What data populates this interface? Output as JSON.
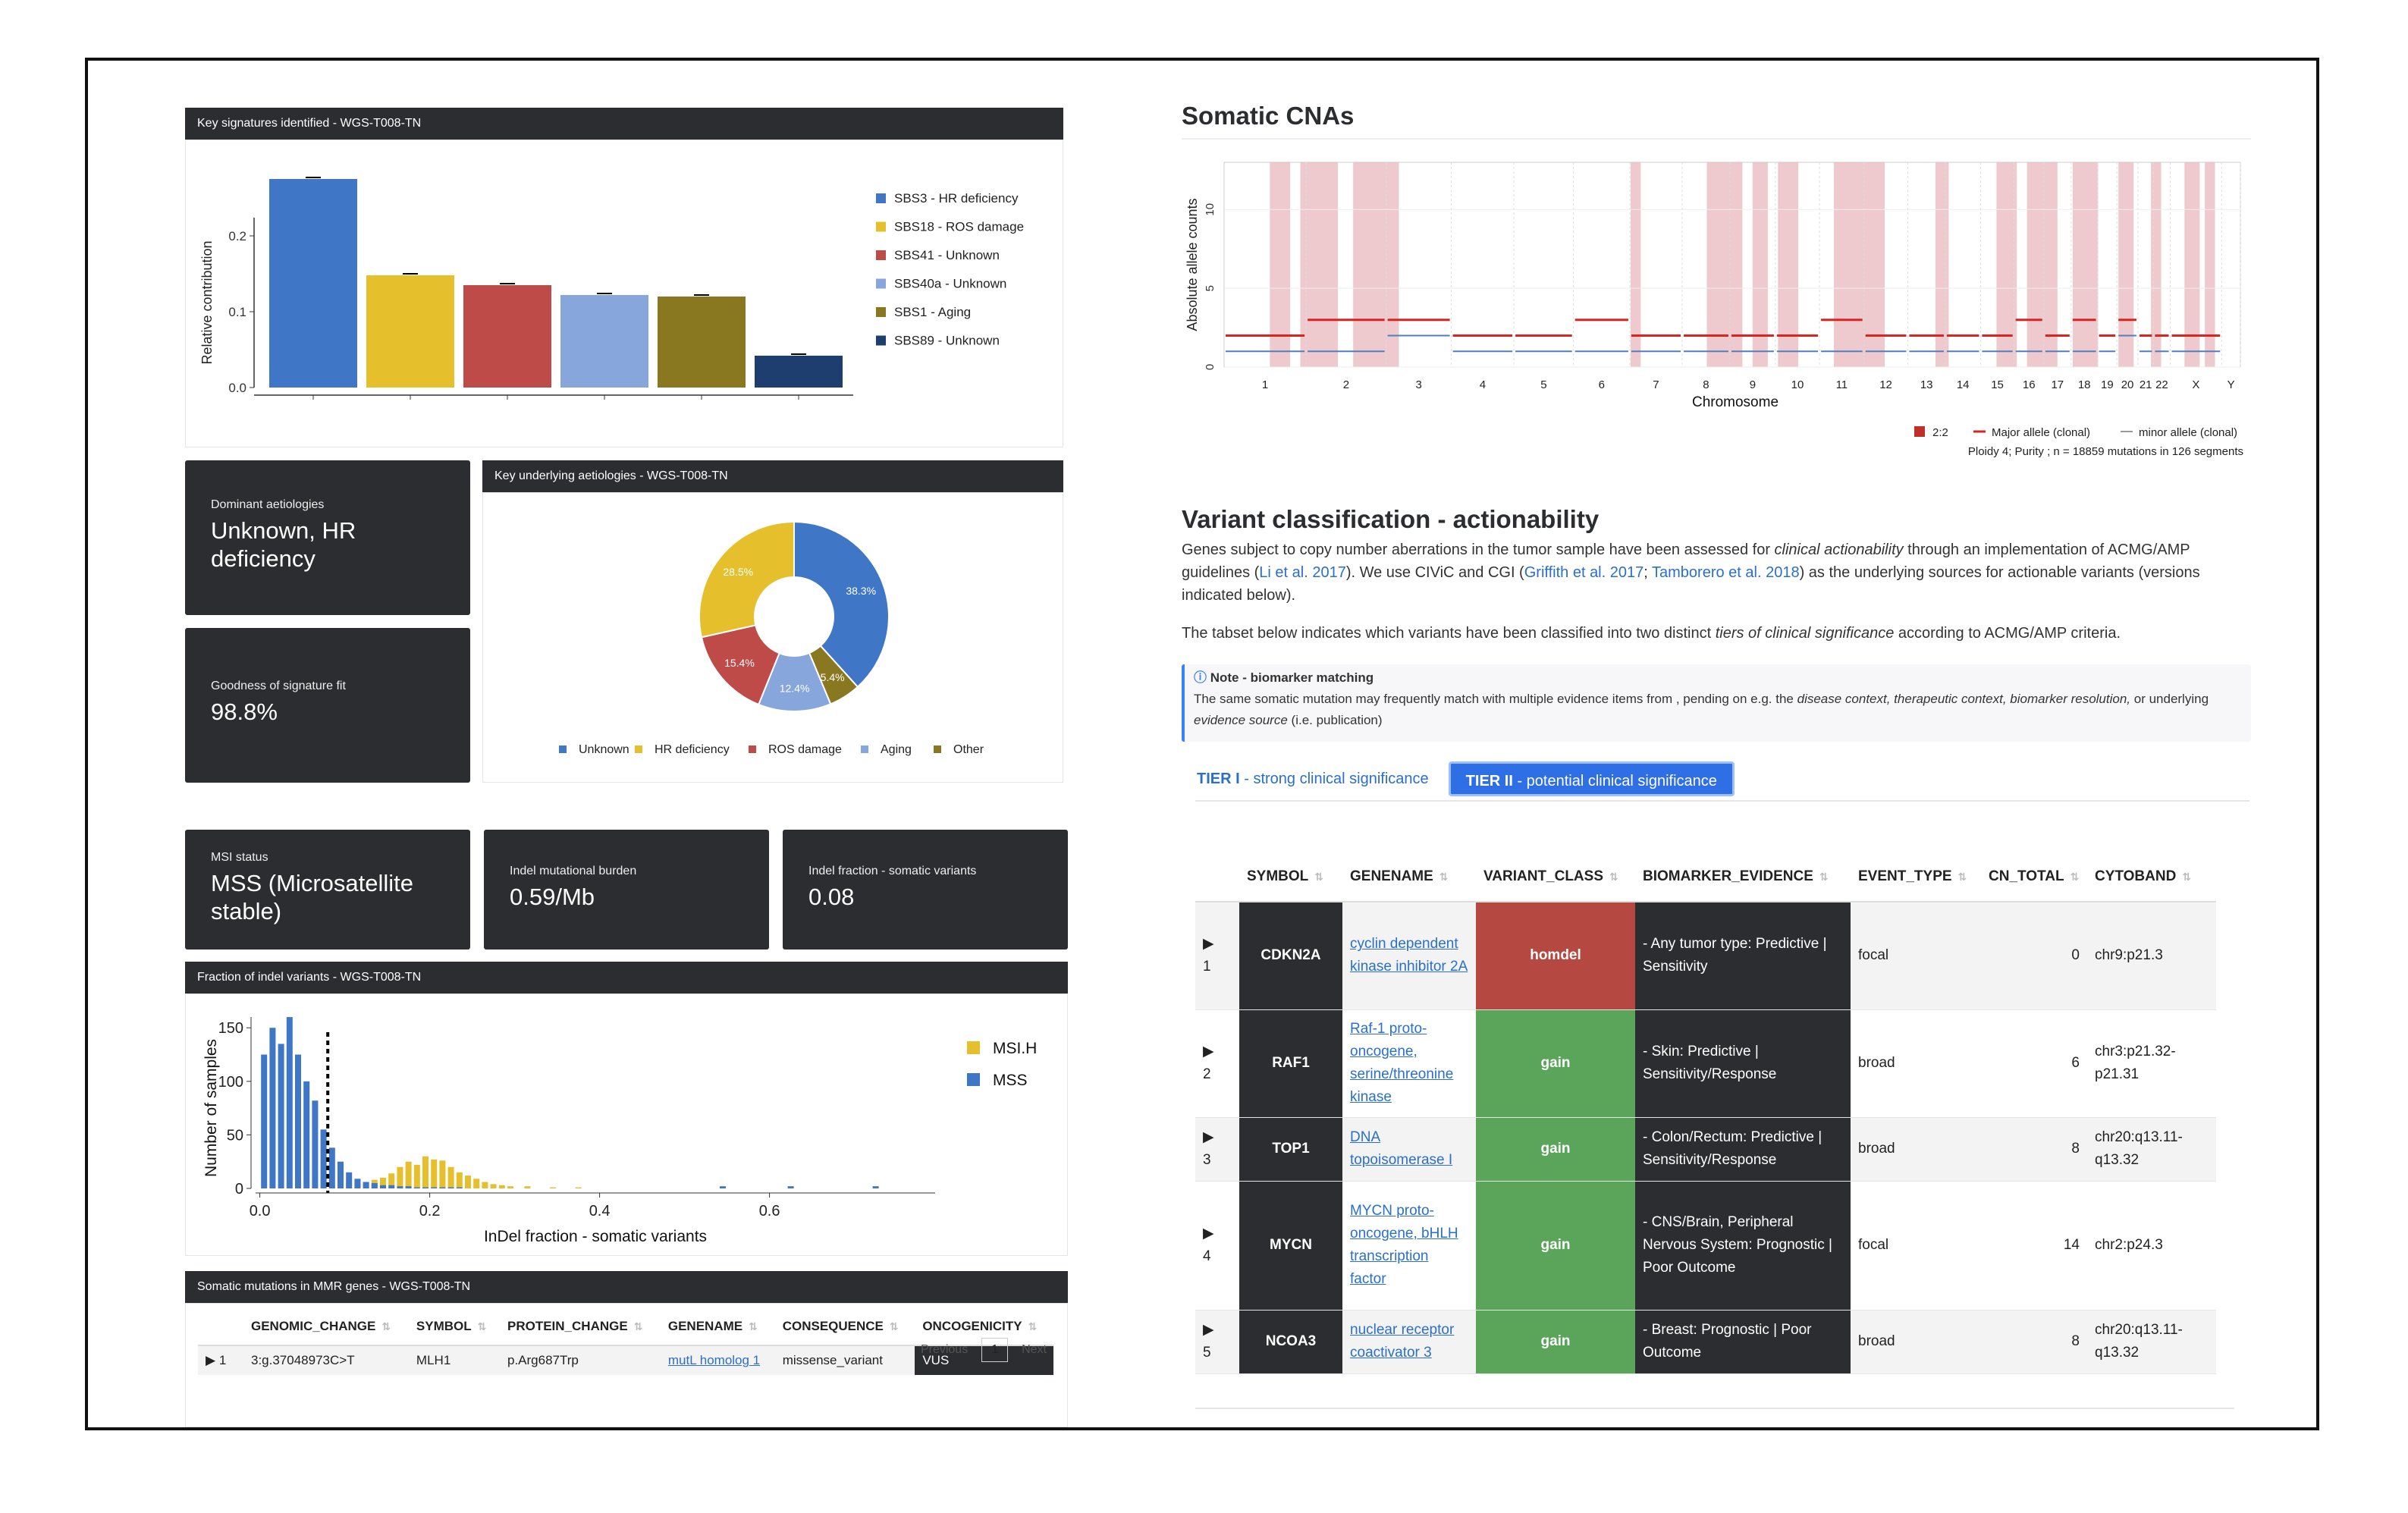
{
  "signatures": {
    "title": "Key signatures identified - WGS-T008-TN",
    "ylabel": "Relative contribution",
    "legend": [
      "SBS3 - HR deficiency",
      "SBS18 - ROS damage",
      "SBS41 - Unknown",
      "SBS40a - Unknown",
      "SBS1 - Aging",
      "SBS89 - Unknown"
    ],
    "colors": [
      "#3f76c6",
      "#e5c02c",
      "#bf4b48",
      "#87a6db",
      "#8a7820",
      "#1d3e6e"
    ],
    "values": [
      0.275,
      0.148,
      0.135,
      0.122,
      0.12,
      0.042
    ],
    "yticks": [
      "0.0",
      "0.1",
      "0.2"
    ]
  },
  "dominant": {
    "label": "Dominant aetiologies",
    "value": "Unknown, HR deficiency"
  },
  "goodness": {
    "label": "Goodness of signature fit",
    "value": "98.8%"
  },
  "aetiologies": {
    "title": "Key underlying aetiologies - WGS-T008-TN",
    "slices": [
      {
        "name": "Unknown",
        "value": 38.3,
        "label": "38.3%",
        "color": "#3f76c6"
      },
      {
        "name": "Other",
        "value": 5.4,
        "label": "5.4%",
        "color": "#8a7820"
      },
      {
        "name": "Aging",
        "value": 12.4,
        "label": "12.4%",
        "color": "#87a6db"
      },
      {
        "name": "ROS damage",
        "value": 15.4,
        "label": "15.4%",
        "color": "#bf4b48"
      },
      {
        "name": "HR deficiency",
        "value": 28.5,
        "label": "28.5%",
        "color": "#e5c02c"
      }
    ],
    "legend": [
      {
        "name": "Unknown",
        "color": "#3f76c6"
      },
      {
        "name": "HR deficiency",
        "color": "#e5c02c"
      },
      {
        "name": "ROS damage",
        "color": "#bf4b48"
      },
      {
        "name": "Aging",
        "color": "#87a6db"
      },
      {
        "name": "Other",
        "color": "#8a7820"
      }
    ]
  },
  "msi": {
    "label": "MSI status",
    "value": "MSS (Microsatellite stable)"
  },
  "tmb": {
    "label": "Indel mutational burden",
    "value": "0.59/Mb"
  },
  "indel_frac": {
    "label": "Indel fraction - somatic variants",
    "value": "0.08"
  },
  "indel_hist": {
    "title": "Fraction of indel variants - WGS-T008-TN",
    "xlabel": "InDel fraction - somatic variants",
    "ylabel": "Number of samples",
    "legend": [
      {
        "name": "MSI.H",
        "color": "#e5c02c"
      },
      {
        "name": "MSS",
        "color": "#3f76c6"
      }
    ],
    "xticks": [
      "0.0",
      "0.2",
      "0.4",
      "0.6"
    ],
    "yticks": [
      "0",
      "50",
      "100",
      "150"
    ],
    "sample_value": 0.085
  },
  "mmr": {
    "title": "Somatic mutations in MMR genes - WGS-T008-TN",
    "columns": [
      "GENOMIC_CHANGE",
      "SYMBOL",
      "PROTEIN_CHANGE",
      "GENENAME",
      "CONSEQUENCE",
      "ONCOGENICITY"
    ],
    "row": {
      "idx": "1",
      "genomic": "3:g.37048973C>T",
      "symbol": "MLH1",
      "protein": "p.Arg687Trp",
      "genename": "mutL homolog 1",
      "consequence": "missense_variant",
      "oncogenicity": "VUS"
    },
    "pager": {
      "prev": "Previous",
      "page": "1",
      "next": "Next"
    }
  },
  "cna": {
    "title": "Somatic CNAs",
    "ylabel": "Absolute allele counts",
    "xlabel": "Chromosome",
    "yticks": [
      "0",
      "5",
      "10"
    ],
    "chromosomes": [
      "1",
      "2",
      "3",
      "4",
      "5",
      "6",
      "7",
      "8",
      "9",
      "10",
      "11",
      "12",
      "13",
      "14",
      "15",
      "16",
      "17",
      "18",
      "19",
      "20",
      "21",
      "22",
      "X",
      "Y"
    ],
    "legend": {
      "box": "2:2",
      "major": "Major allele (clonal)",
      "minor": "minor allele (clonal)"
    },
    "caption": "Ploidy 4; Purity  ; n = 18859 mutations in 126 segments"
  },
  "actionability": {
    "title": "Variant classification - actionability",
    "p1_a": "Genes subject to copy number aberrations in the tumor sample have been assessed for ",
    "p1_em": "clinical actionability",
    "p1_b": " through an implementation of ACMG/AMP guidelines (",
    "ref1": "Li et al. 2017",
    "p1_c": "). We use CIViC and CGI (",
    "ref2": "Griffith et al. 2017",
    "p1_d": "; ",
    "ref3": "Tamborero et al. 2018",
    "p1_e": ") as the underlying sources for actionable variants (versions indicated below).",
    "p2_a": "The tabset below indicates which variants have been classified into two distinct ",
    "p2_em": "tiers of clinical significance",
    "p2_b": " according to ACMG/AMP criteria.",
    "note_title": "Note - biomarker matching",
    "note_a": "The same somatic mutation may frequently match with multiple evidence items from , pending on e.g. the ",
    "note_em1": "disease context, therapeutic context, biomarker resolution,",
    "note_b": " or underlying ",
    "note_em2": "evidence source",
    "note_c": " (i.e. publication)",
    "tab1_bold": "TIER I",
    "tab1_rest": " - strong clinical significance",
    "tab2_bold": "TIER II",
    "tab2_rest": " - potential clinical significance"
  },
  "variant_table": {
    "columns": [
      "SYMBOL",
      "GENENAME",
      "VARIANT_CLASS",
      "BIOMARKER_EVIDENCE",
      "EVENT_TYPE",
      "CN_TOTAL",
      "CYTOBAND"
    ],
    "rows": [
      {
        "idx": "1",
        "symbol": "CDKN2A",
        "genename": "cyclin dependent kinase inhibitor 2A",
        "variant_class": "homdel",
        "class_color": "#b54942",
        "evidence": "- Any tumor type: Predictive | Sensitivity",
        "event_type": "focal",
        "cn_total": "0",
        "cytoband": "chr9:p21.3"
      },
      {
        "idx": "2",
        "symbol": "RAF1",
        "genename": "Raf-1 proto-oncogene, serine/threonine kinase",
        "variant_class": "gain",
        "class_color": "#5aa55a",
        "evidence": "- Skin: Predictive | Sensitivity/Response",
        "event_type": "broad",
        "cn_total": "6",
        "cytoband": "chr3:p21.32-p21.31"
      },
      {
        "idx": "3",
        "symbol": "TOP1",
        "genename": "DNA topoisomerase I",
        "variant_class": "gain",
        "class_color": "#5aa55a",
        "evidence": "- Colon/Rectum: Predictive | Sensitivity/Response",
        "event_type": "broad",
        "cn_total": "8",
        "cytoband": "chr20:q13.11-q13.32"
      },
      {
        "idx": "4",
        "symbol": "MYCN",
        "genename": "MYCN proto-oncogene, bHLH transcription factor",
        "variant_class": "gain",
        "class_color": "#5aa55a",
        "evidence": "- CNS/Brain, Peripheral Nervous System: Prognostic | Poor Outcome",
        "event_type": "focal",
        "cn_total": "14",
        "cytoband": "chr2:p24.3"
      },
      {
        "idx": "5",
        "symbol": "NCOA3",
        "genename": "nuclear receptor coactivator 3",
        "variant_class": "gain",
        "class_color": "#5aa55a",
        "evidence": "- Breast: Prognostic | Poor Outcome",
        "event_type": "broad",
        "cn_total": "8",
        "cytoband": "chr20:q13.11-q13.32"
      }
    ]
  },
  "chart_data": [
    {
      "type": "bar",
      "title": "Key signatures identified - WGS-T008-TN",
      "ylabel": "Relative contribution",
      "categories": [
        "SBS3 - HR deficiency",
        "SBS18 - ROS damage",
        "SBS41 - Unknown",
        "SBS40a - Unknown",
        "SBS1 - Aging",
        "SBS89 - Unknown"
      ],
      "values": [
        0.275,
        0.148,
        0.135,
        0.122,
        0.12,
        0.042
      ],
      "ylim": [
        0,
        0.3
      ]
    },
    {
      "type": "pie",
      "title": "Key underlying aetiologies - WGS-T008-TN",
      "categories": [
        "Unknown",
        "Other",
        "Aging",
        "ROS damage",
        "HR deficiency"
      ],
      "values": [
        38.3,
        5.4,
        12.4,
        15.4,
        28.5
      ]
    },
    {
      "type": "bar",
      "title": "Fraction of indel variants - WGS-T008-TN",
      "xlabel": "InDel fraction - somatic variants",
      "ylabel": "Number of samples",
      "x": [
        0.01,
        0.02,
        0.03,
        0.04,
        0.05,
        0.06,
        0.07,
        0.08,
        0.09,
        0.1,
        0.11,
        0.12,
        0.13,
        0.14,
        0.15,
        0.16,
        0.17,
        0.18,
        0.19,
        0.2,
        0.21,
        0.22,
        0.23,
        0.24,
        0.25,
        0.26,
        0.27,
        0.28,
        0.29,
        0.3,
        0.32,
        0.35,
        0.38,
        0.42,
        0.47,
        0.55,
        0.63,
        0.73
      ],
      "series": [
        {
          "name": "MSS",
          "values": [
            125,
            150,
            135,
            160,
            125,
            100,
            82,
            55,
            38,
            25,
            15,
            9,
            6,
            5,
            3,
            3,
            2,
            2,
            1,
            1,
            1,
            1,
            1,
            1,
            0,
            0,
            0,
            0,
            0,
            0,
            0,
            0,
            0,
            0,
            0,
            2,
            2,
            2
          ]
        },
        {
          "name": "MSI.H",
          "values": [
            0,
            0,
            0,
            0,
            0,
            0,
            0,
            2,
            3,
            4,
            5,
            5,
            6,
            8,
            10,
            14,
            20,
            25,
            22,
            30,
            27,
            26,
            20,
            15,
            12,
            9,
            6,
            4,
            3,
            2,
            2,
            1,
            1,
            0,
            0,
            0,
            0,
            0
          ]
        }
      ],
      "xlim": [
        0,
        0.75
      ],
      "ylim": [
        0,
        170
      ]
    },
    {
      "type": "line",
      "title": "Somatic CNAs",
      "xlabel": "Chromosome",
      "ylabel": "Absolute allele counts",
      "ylim": [
        0,
        13
      ],
      "categories": [
        "1",
        "2",
        "3",
        "4",
        "5",
        "6",
        "7",
        "8",
        "9",
        "10",
        "11",
        "12",
        "13",
        "14",
        "15",
        "16",
        "17",
        "18",
        "19",
        "20",
        "21",
        "22",
        "X",
        "Y"
      ],
      "series": [
        {
          "name": "Major allele (clonal)",
          "values": [
            2,
            3,
            3,
            2,
            2,
            3,
            2,
            2,
            2,
            2,
            3,
            2,
            2,
            2,
            2,
            3,
            2,
            3,
            2,
            3,
            2,
            2,
            2,
            0
          ]
        },
        {
          "name": "minor allele (clonal)",
          "values": [
            1,
            1,
            2,
            1,
            1,
            1,
            1,
            1,
            1,
            1,
            1,
            1,
            1,
            1,
            1,
            1,
            1,
            1,
            1,
            2,
            1,
            1,
            1,
            0
          ]
        }
      ]
    }
  ]
}
